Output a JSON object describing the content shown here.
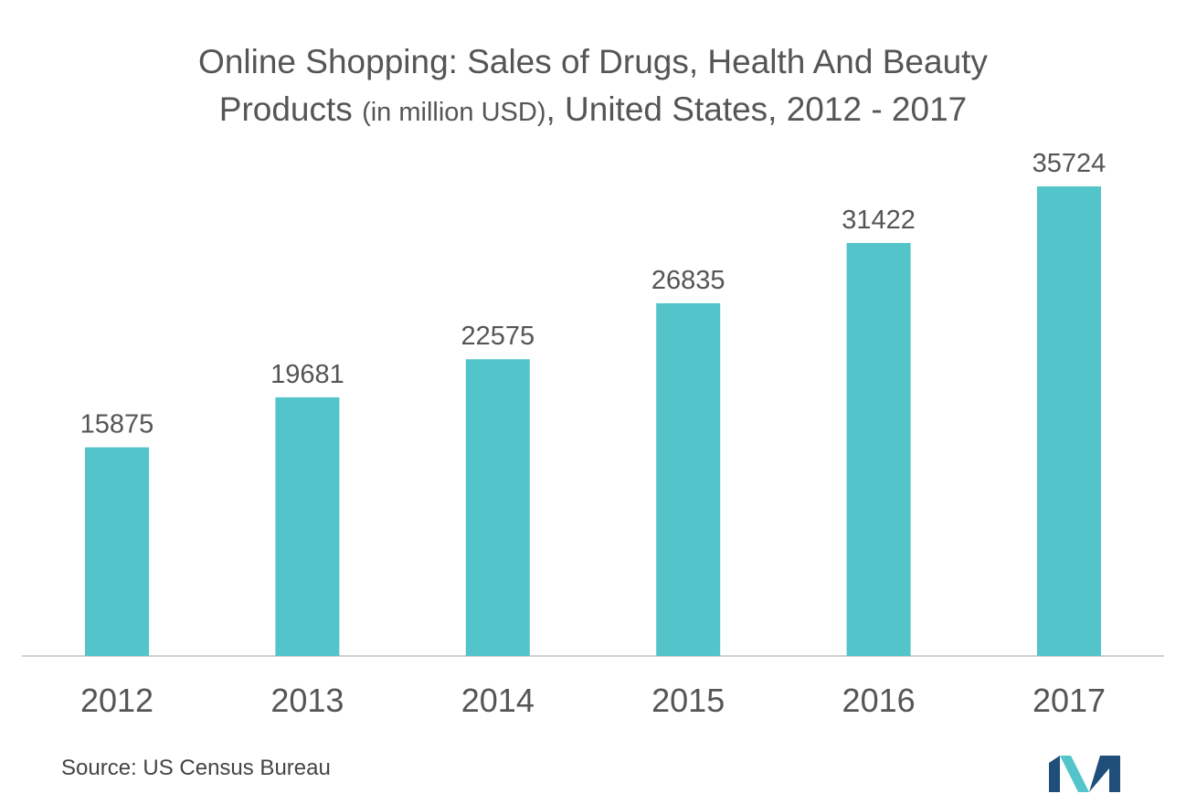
{
  "title": {
    "line1": "Online Shopping: Sales of Drugs, Health And Beauty",
    "line2_start": "Products",
    "line2_unit": "(in million USD)",
    "line2_end": ", United States, 2012 - 2017"
  },
  "source": "Source: US Census Bureau",
  "colors": {
    "bar": "#52C4CA",
    "axis": "#d0d0d0",
    "logo_dark": "#1f4e79",
    "logo_light": "#52C4CA"
  },
  "chart_data": {
    "type": "bar",
    "title": "Online Shopping: Sales of Drugs, Health And Beauty Products (in million USD), United States, 2012 - 2017",
    "categories": [
      "2012",
      "2013",
      "2014",
      "2015",
      "2016",
      "2017"
    ],
    "values": [
      15875,
      19681,
      22575,
      26835,
      31422,
      35724
    ],
    "xlabel": "",
    "ylabel": "",
    "ylim": [
      0,
      36700
    ],
    "grid": false,
    "legend": "none"
  }
}
